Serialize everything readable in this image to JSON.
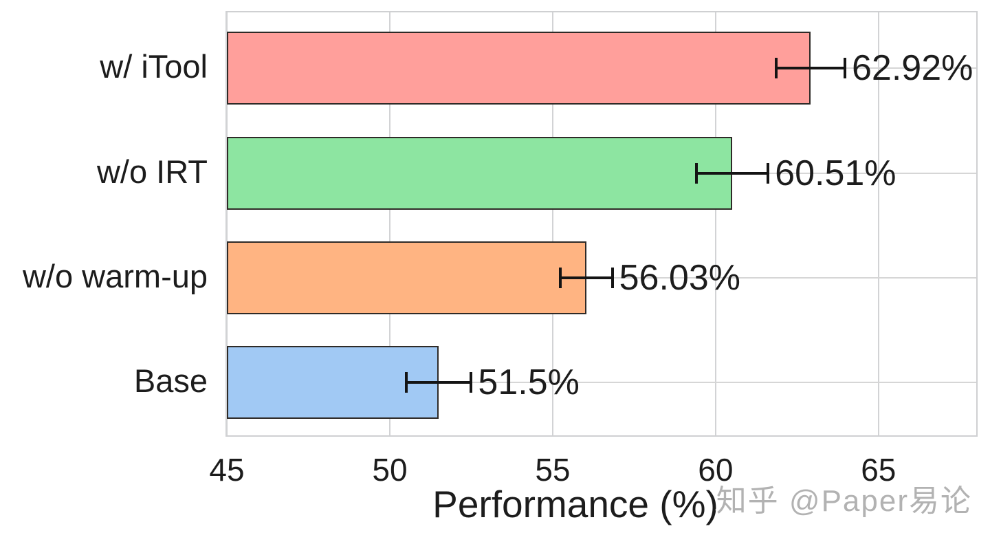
{
  "chart_data": {
    "type": "bar",
    "orientation": "horizontal",
    "title": "",
    "xlabel": "Performance (%)",
    "ylabel": "",
    "xlim": [
      45,
      68
    ],
    "xticks": [
      45,
      50,
      55,
      60,
      65
    ],
    "grid": true,
    "grid_color": "#d2d3d5",
    "legend": "none",
    "categories": [
      "w/ iTool",
      "w/o IRT",
      "w/o warm-up",
      "Base"
    ],
    "values": [
      62.92,
      60.51,
      56.03,
      51.5
    ],
    "value_labels": [
      "62.92%",
      "60.51%",
      "56.03%",
      "51.5%"
    ],
    "errors": [
      1.05,
      1.1,
      0.8,
      1.0
    ],
    "bar_colors": [
      "#FF9F9B",
      "#8DE5A1",
      "#FFB482",
      "#A1C9F4"
    ],
    "bar_edge_color": "#2e2a27",
    "error_bar_color": "#141414"
  },
  "watermark": {
    "text": "知乎 @Paper易论",
    "color": "#b2b2b2"
  }
}
